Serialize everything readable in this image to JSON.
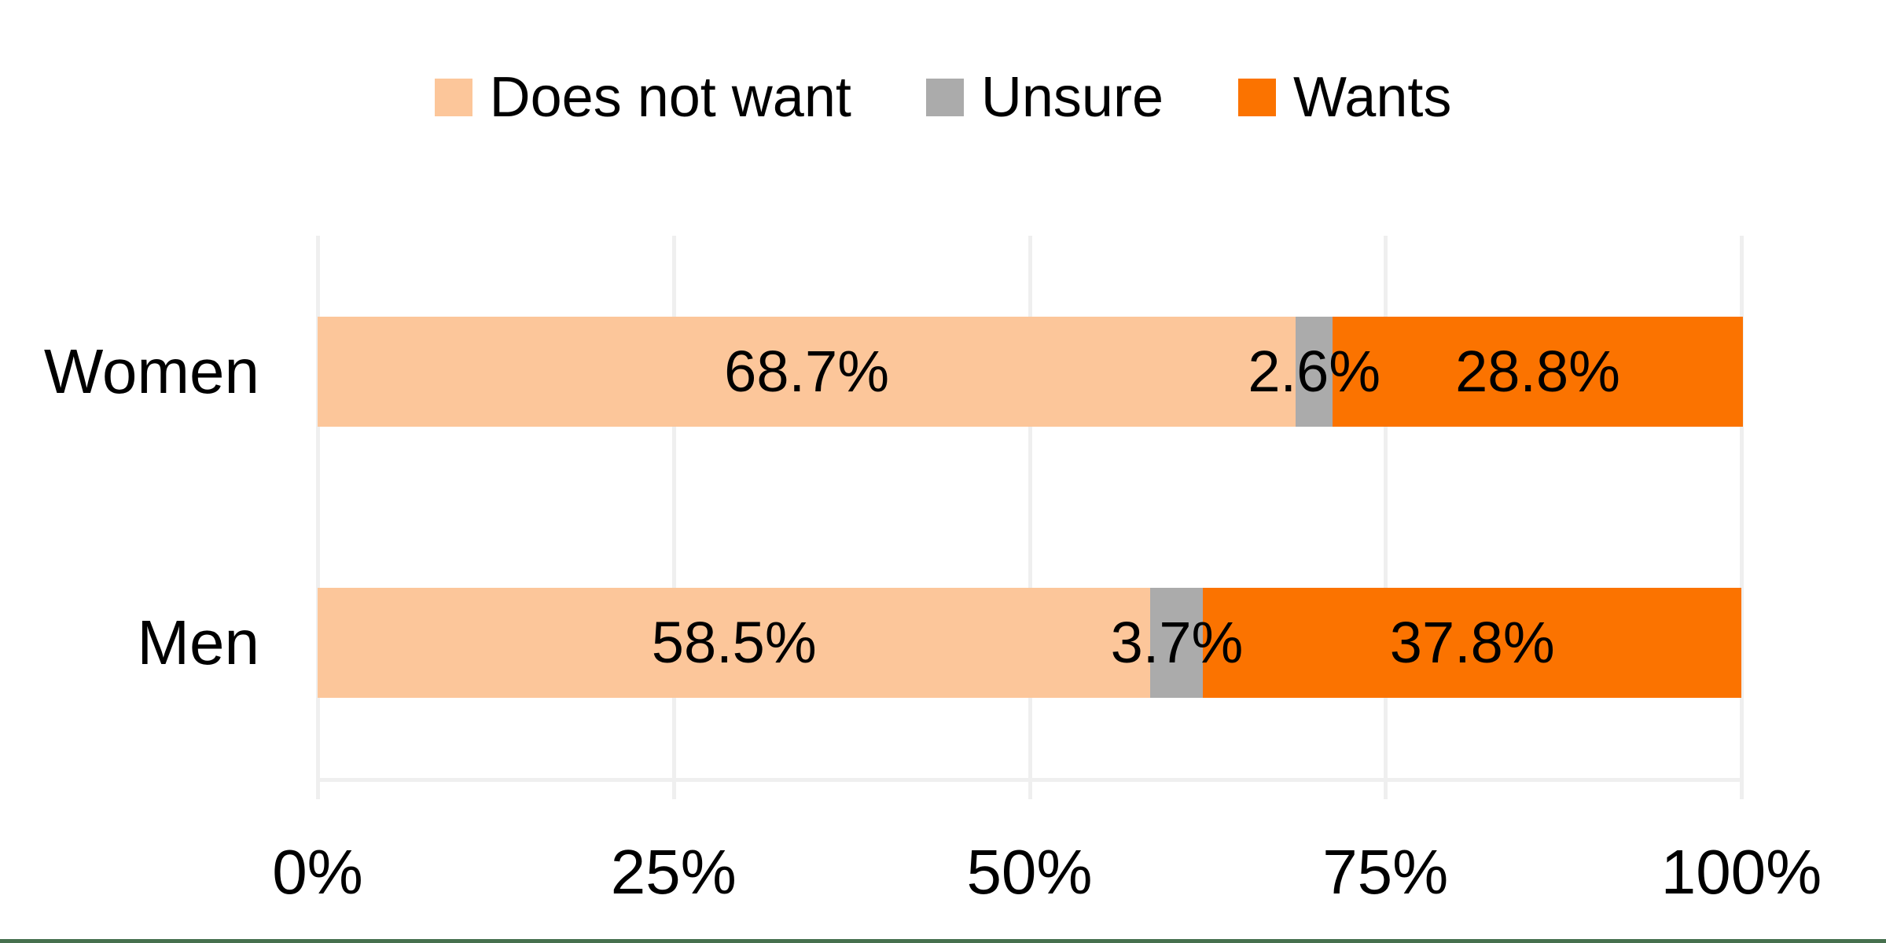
{
  "chart_data": {
    "type": "bar",
    "orientation": "horizontal",
    "stacked": true,
    "title": "",
    "xlabel": "",
    "ylabel": "",
    "categories": [
      "Women",
      "Men"
    ],
    "series": [
      {
        "name": "Does not want",
        "color": "#FCC69A",
        "values": [
          68.7,
          58.5
        ],
        "labels": [
          "68.7%",
          "58.5%"
        ]
      },
      {
        "name": "Unsure",
        "color": "#ABABAB",
        "values": [
          2.6,
          3.7
        ],
        "labels": [
          "2.6%",
          "3.7%"
        ]
      },
      {
        "name": "Wants",
        "color": "#FB7300",
        "values": [
          28.8,
          37.8
        ],
        "labels": [
          "28.8%",
          "37.8%"
        ]
      }
    ],
    "x_axis": {
      "range": [
        0,
        100
      ],
      "tick_values": [
        0,
        25,
        50,
        75,
        100
      ],
      "tick_labels": [
        "0%",
        "25%",
        "50%",
        "75%",
        "100%"
      ]
    },
    "legend_position": "top",
    "grid": true,
    "colors": {
      "data_label": "#000000",
      "gridline": "#EFEFEF",
      "background": "#FFFFFF",
      "bottom_border": "#46704E"
    }
  }
}
